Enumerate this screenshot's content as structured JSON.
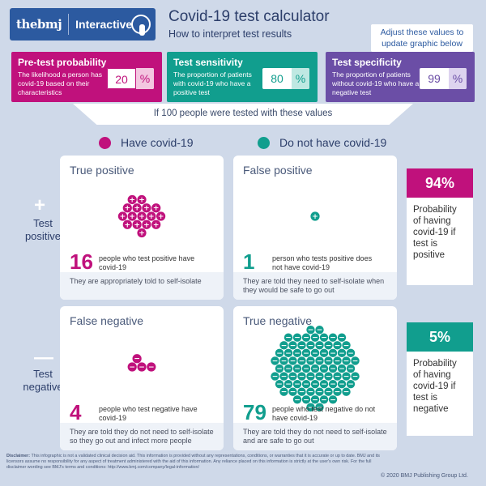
{
  "header": {
    "brand": "thebmj",
    "interactive": "Interactive",
    "title": "Covid-19 test calculator",
    "subtitle": "How to interpret test results",
    "adjust_note": "Adjust these values to update graphic below"
  },
  "params": {
    "pretest": {
      "heading": "Pre-test probability",
      "desc": "The likelihood a person has covid-19 based on their characteristics",
      "value": "20",
      "unit": "%"
    },
    "sensitivity": {
      "heading": "Test sensitivity",
      "desc": "The proportion of patients with covid-19 who have a positive test",
      "value": "80",
      "unit": "%"
    },
    "specificity": {
      "heading": "Test specificity",
      "desc": "The proportion of patients without covid-19 who have a negative test",
      "value": "99",
      "unit": "%"
    }
  },
  "band_text": "If 100 people were tested with these values",
  "legend": {
    "have": "Have covid-19",
    "not_have": "Do not have covid-19"
  },
  "rows": {
    "positive": {
      "sign": "+",
      "label": "Test positive"
    },
    "negative": {
      "sign": "—",
      "label": "Test negative"
    }
  },
  "quadrants": {
    "tp": {
      "heading": "True positive",
      "count": 16,
      "count_text": "16",
      "desc": "people who test positive have covid-19",
      "foot": "They are appropriately told to self-isolate",
      "color": "#c0117c",
      "symbol": "+"
    },
    "fp": {
      "heading": "False positive",
      "count": 1,
      "count_text": "1",
      "desc": "person who tests positive does not have covid-19",
      "foot": "They are told they need to self-isolate when they would be safe to go out",
      "color": "#119e8e",
      "symbol": "+"
    },
    "fn": {
      "heading": "False negative",
      "count": 4,
      "count_text": "4",
      "desc": "people who test negative have covid-19",
      "foot": "They are told they do not need to self-isolate so they go out and infect more people",
      "color": "#c0117c",
      "symbol": "−"
    },
    "tn": {
      "heading": "True negative",
      "count": 79,
      "count_text": "79",
      "desc": "people who test negative do not have covid-19",
      "foot": "They are told they do not need to self-isolate and are safe to go out",
      "color": "#119e8e",
      "symbol": "−"
    }
  },
  "probability": {
    "positive": {
      "value": "94%",
      "text": "Probability of having covid-19 if test is positive",
      "color": "#c0117c"
    },
    "negative": {
      "value": "5%",
      "text": "Probability of having covid-19 if test is negative",
      "color": "#119e8e"
    }
  },
  "disclaimer_label": "Disclaimer:",
  "disclaimer": "This infographic is not a validated clinical decision aid. This information is provided without any representations, conditions, or warranties that it is accurate or up to date. BMJ and its licensors assume no responsibility for any aspect of treatment administered with the aid of this information. Any reliance placed on this information is strictly at the user's own risk. For the full disclaimer wording see BMJ's terms and conditions: http://www.bmj.com/company/legal-information/",
  "copyright": "© 2020 BMJ Publishing Group Ltd."
}
